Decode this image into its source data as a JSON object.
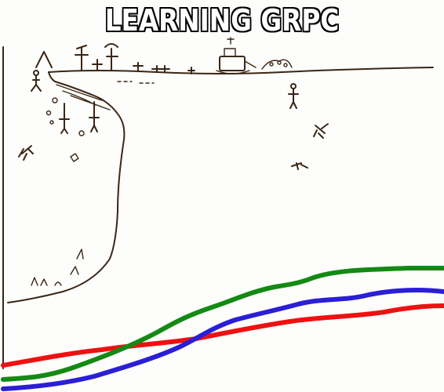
{
  "title": "LEARNING GRPC",
  "colors": {
    "background": "#fdfdfb",
    "ink": "#3a2616",
    "red_curve": "#ee1111",
    "green_curve": "#138a13",
    "blue_curve": "#2a1fd6"
  },
  "curves": [
    {
      "color_key": "red_curve"
    },
    {
      "color_key": "green_curve"
    },
    {
      "color_key": "blue_curve"
    }
  ]
}
